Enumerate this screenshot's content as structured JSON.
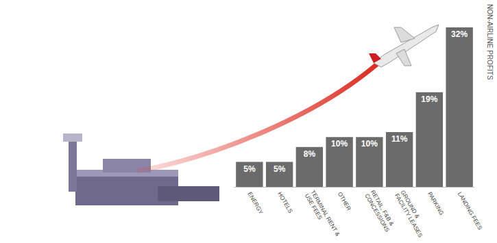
{
  "chart_data": {
    "type": "bar",
    "categories": [
      "ENERGY",
      "HOTELS",
      "TERMINAL RENT & USE FEES",
      "OTHER",
      "RETAIL, F&B & CONCESSIONS",
      "GROUND & FACILITY LEASES",
      "PARKING",
      "LANDING FEES"
    ],
    "values": [
      5,
      5,
      8,
      10,
      10,
      11,
      19,
      32
    ],
    "value_labels": [
      "5%",
      "5%",
      "8%",
      "10%",
      "10%",
      "11%",
      "19%",
      "32%"
    ],
    "ylim": [
      0,
      32
    ],
    "ylabel": "NON-AIRLINE PROFITS",
    "color": "#6b6b6b",
    "data_labels": true,
    "tick_labels": "x",
    "grid": false
  }
}
